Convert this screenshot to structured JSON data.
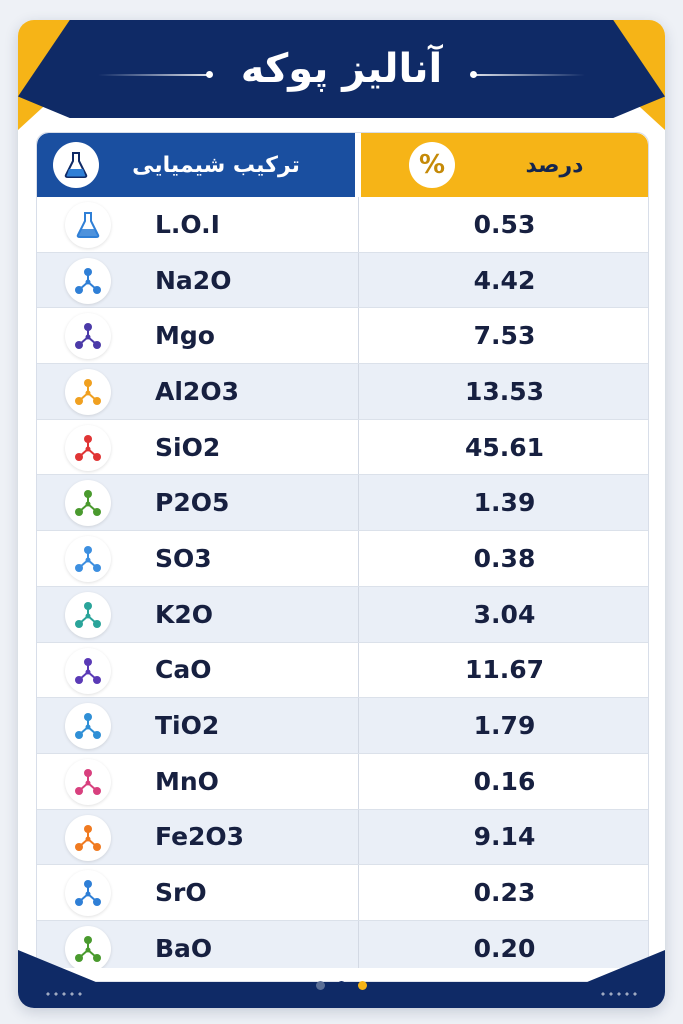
{
  "header": {
    "title": "آنالیز پوکه"
  },
  "table": {
    "composition_header": "ترکیب شیمیایی",
    "percent_header": "درصد",
    "percent_icon": "%",
    "rows": [
      {
        "formula": "L.O.I",
        "value": "0.53",
        "icon": "flask-icon",
        "color": "#2f7fd6"
      },
      {
        "formula": "Na2O",
        "value": "4.42",
        "icon": "molecule-icon",
        "color": "#2f7fd6"
      },
      {
        "formula": "Mgo",
        "value": "7.53",
        "icon": "molecule-icon",
        "color": "#4b3aa8"
      },
      {
        "formula": "Al2O3",
        "value": "13.53",
        "icon": "molecule-icon",
        "color": "#f0a020"
      },
      {
        "formula": "SiO2",
        "value": "45.61",
        "icon": "molecule-icon",
        "color": "#e03535"
      },
      {
        "formula": "P2O5",
        "value": "1.39",
        "icon": "molecule-icon",
        "color": "#4a9a2e"
      },
      {
        "formula": "SO3",
        "value": "0.38",
        "icon": "molecule-icon",
        "color": "#3d8fe0"
      },
      {
        "formula": "K2O",
        "value": "3.04",
        "icon": "molecule-icon",
        "color": "#2aa49a"
      },
      {
        "formula": "CaO",
        "value": "11.67",
        "icon": "molecule-icon",
        "color": "#5a3ab6"
      },
      {
        "formula": "TiO2",
        "value": "1.79",
        "icon": "molecule-icon",
        "color": "#2f8fd6"
      },
      {
        "formula": "MnO",
        "value": "0.16",
        "icon": "molecule-icon",
        "color": "#d8407e"
      },
      {
        "formula": "Fe2O3",
        "value": "9.14",
        "icon": "molecule-icon",
        "color": "#f07a20"
      },
      {
        "formula": "SrO",
        "value": "0.23",
        "icon": "molecule-icon",
        "color": "#2f7fd6"
      },
      {
        "formula": "BaO",
        "value": "0.20",
        "icon": "molecule-icon",
        "color": "#4a9a2e"
      }
    ]
  },
  "pager": {
    "dots": [
      "#5b6f96",
      "#0f2a66",
      "#f6b417"
    ]
  },
  "colors": {
    "navy": "#0f2a66",
    "blue": "#1a4fa0",
    "gold": "#f6b417"
  }
}
